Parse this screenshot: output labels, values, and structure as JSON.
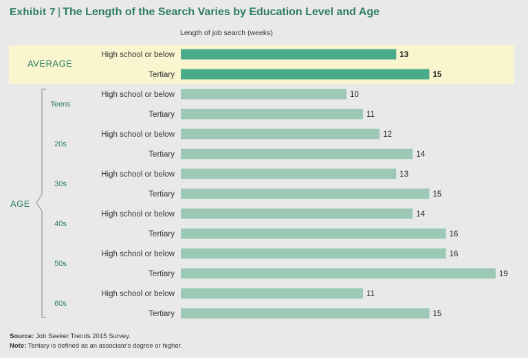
{
  "header": {
    "exhibit": "Exhibit 7",
    "title": "The Length of the Search Varies by Education Level and Age"
  },
  "labels": {
    "average": "AVERAGE",
    "age": "AGE"
  },
  "colors": {
    "average_bar": "#4aab8a",
    "age_bar": "#9cc9b6",
    "highlight_band": "#f8f5cf",
    "accent": "#2e7d63"
  },
  "chart_data": {
    "type": "bar",
    "orientation": "horizontal",
    "xlabel": "Length of job search (weeks)",
    "rows": [
      {
        "group": "AVERAGE",
        "category": "High school or below",
        "value": 13
      },
      {
        "group": "AVERAGE",
        "category": "Tertiary",
        "value": 15
      },
      {
        "group": "Teens",
        "category": "High school or below",
        "value": 10
      },
      {
        "group": "Teens",
        "category": "Tertiary",
        "value": 11
      },
      {
        "group": "20s",
        "category": "High school or below",
        "value": 12
      },
      {
        "group": "20s",
        "category": "Tertiary",
        "value": 14
      },
      {
        "group": "30s",
        "category": "High school or below",
        "value": 13
      },
      {
        "group": "30s",
        "category": "Tertiary",
        "value": 15
      },
      {
        "group": "40s",
        "category": "High school or below",
        "value": 14
      },
      {
        "group": "40s",
        "category": "Tertiary",
        "value": 16
      },
      {
        "group": "50s",
        "category": "High school or below",
        "value": 16
      },
      {
        "group": "50s",
        "category": "Tertiary",
        "value": 19
      },
      {
        "group": "60s",
        "category": "High school or below",
        "value": 11
      },
      {
        "group": "60s",
        "category": "Tertiary",
        "value": 15
      }
    ],
    "age_groups": [
      "Teens",
      "20s",
      "30s",
      "40s",
      "50s",
      "60s"
    ],
    "xlim": [
      0,
      19
    ]
  },
  "footer": {
    "source_label": "Source:",
    "source_text": " Job Seeker Trends 2015 Survey.",
    "note_label": "Note:",
    "note_text": " Tertiary is defined as an associate's degree or higher."
  }
}
